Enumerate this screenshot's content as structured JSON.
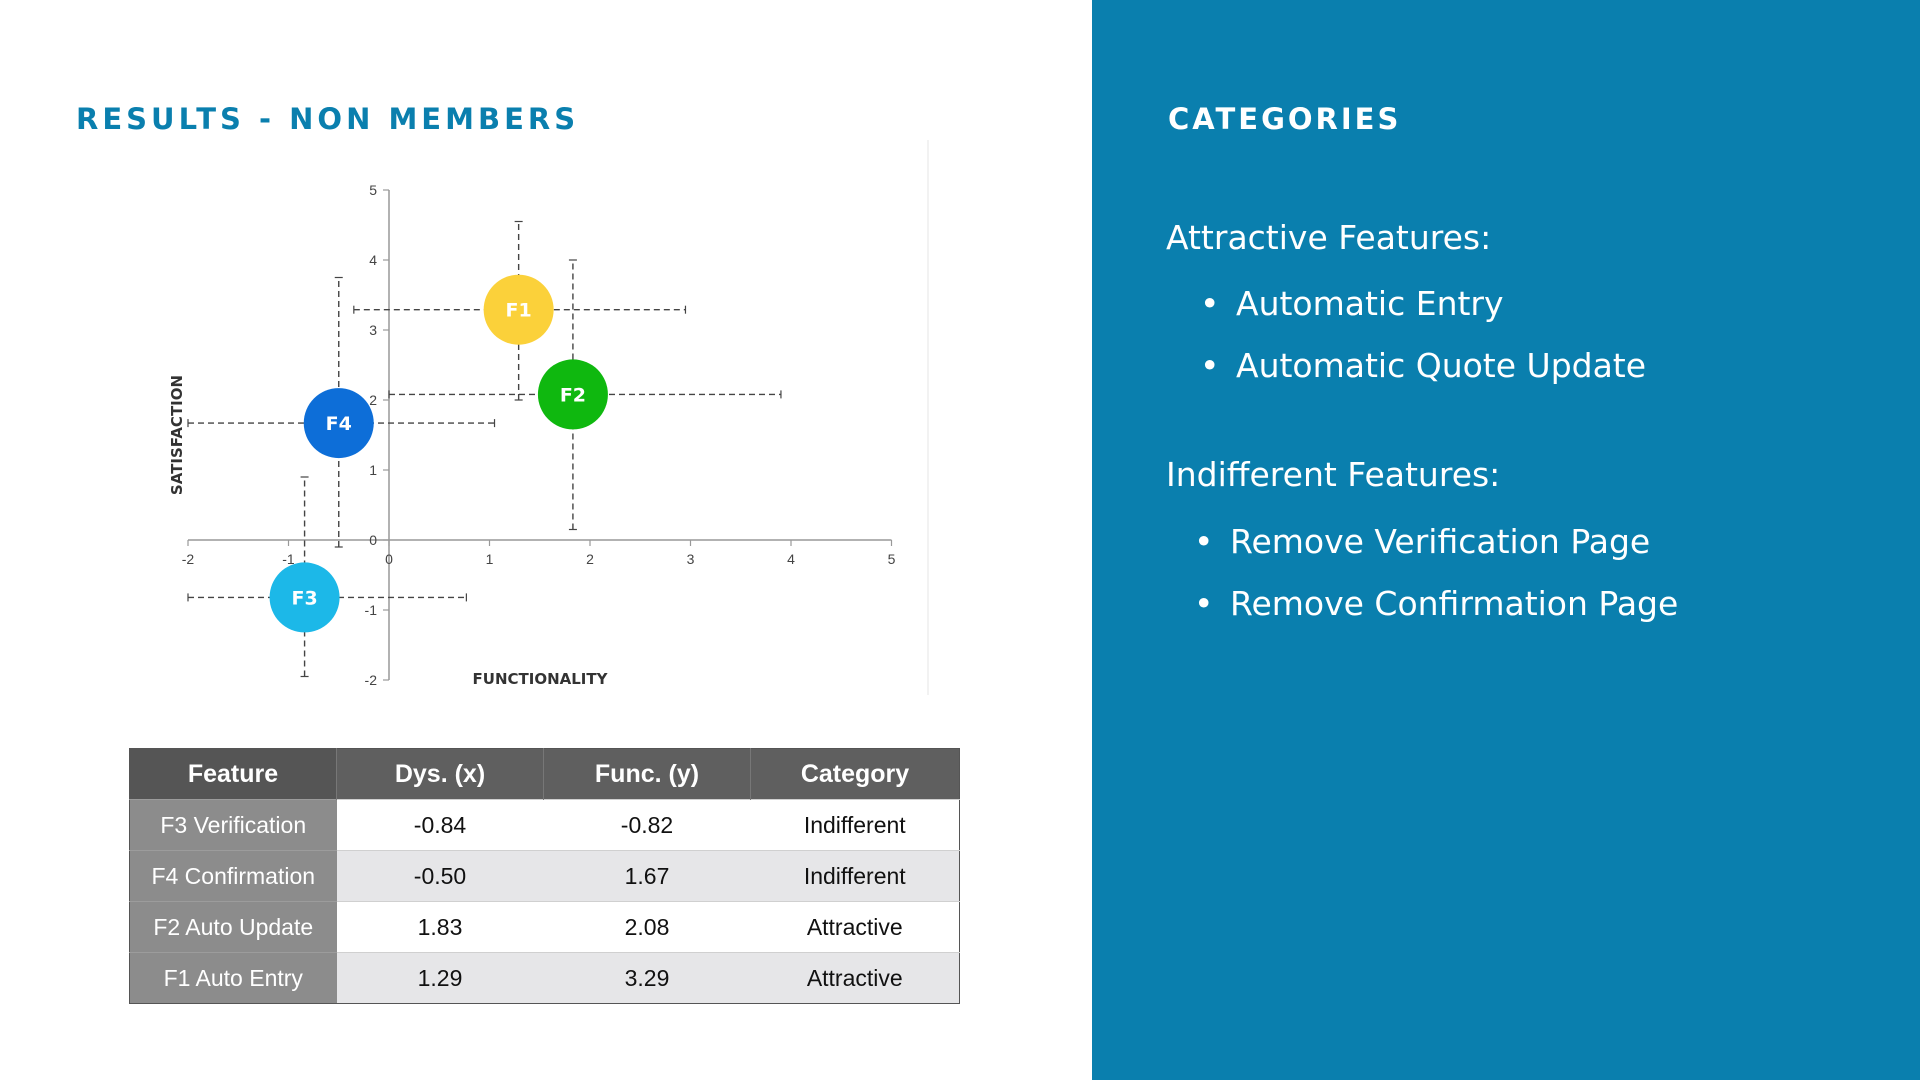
{
  "left_title": "RESULTS - NON MEMBERS",
  "chart_data": {
    "type": "scatter",
    "xlabel": "FUNCTIONALITY",
    "ylabel": "SATISFACTION",
    "xlim": [
      -2,
      5
    ],
    "ylim": [
      -2,
      5
    ],
    "x_ticks": [
      "-2",
      "-1",
      "0",
      "1",
      "2",
      "3",
      "4",
      "5"
    ],
    "y_ticks": [
      "-2",
      "-1",
      "0",
      "1",
      "2",
      "3",
      "4",
      "5"
    ],
    "grid": false,
    "points": [
      {
        "label": "F1",
        "x": 1.29,
        "y": 3.29,
        "x_range": [
          -0.35,
          2.95
        ],
        "y_range": [
          2.0,
          4.55
        ],
        "color": "#fbd13a"
      },
      {
        "label": "F2",
        "x": 1.83,
        "y": 2.08,
        "x_range": [
          0.0,
          3.9
        ],
        "y_range": [
          0.15,
          4.0
        ],
        "color": "#0fb80f"
      },
      {
        "label": "F4",
        "x": -0.5,
        "y": 1.67,
        "x_range": [
          -2.0,
          1.05
        ],
        "y_range": [
          -0.1,
          3.75
        ],
        "color": "#0d6ed8"
      },
      {
        "label": "F3",
        "x": -0.84,
        "y": -0.82,
        "x_range": [
          -2.0,
          0.77
        ],
        "y_range": [
          -1.95,
          0.9
        ],
        "color": "#1cb8e8"
      }
    ]
  },
  "table": {
    "headers": [
      "Feature",
      "Dys. (x)",
      "Func. (y)",
      "Category"
    ],
    "rows": [
      [
        "F3 Verification",
        "-0.84",
        "-0.82",
        "Indifferent"
      ],
      [
        "F4 Confirmation",
        "-0.50",
        "1.67",
        "Indifferent"
      ],
      [
        "F2 Auto Update",
        "1.83",
        "2.08",
        "Attractive"
      ],
      [
        "F1 Auto Entry",
        "1.29",
        "3.29",
        "Attractive"
      ]
    ]
  },
  "right_title": "CATEGORIES",
  "categories": [
    {
      "heading": "Attractive Features:",
      "items": [
        "Automatic Entry",
        "Automatic Quote Update"
      ]
    },
    {
      "heading": "Indifferent Features:",
      "items": [
        "Remove Verification Page",
        "Remove Confirmation Page"
      ]
    }
  ],
  "colors": {
    "accent": "#0a7fae",
    "table_header": "#5f5f5f",
    "table_feature_col": "#8c8c8c"
  }
}
